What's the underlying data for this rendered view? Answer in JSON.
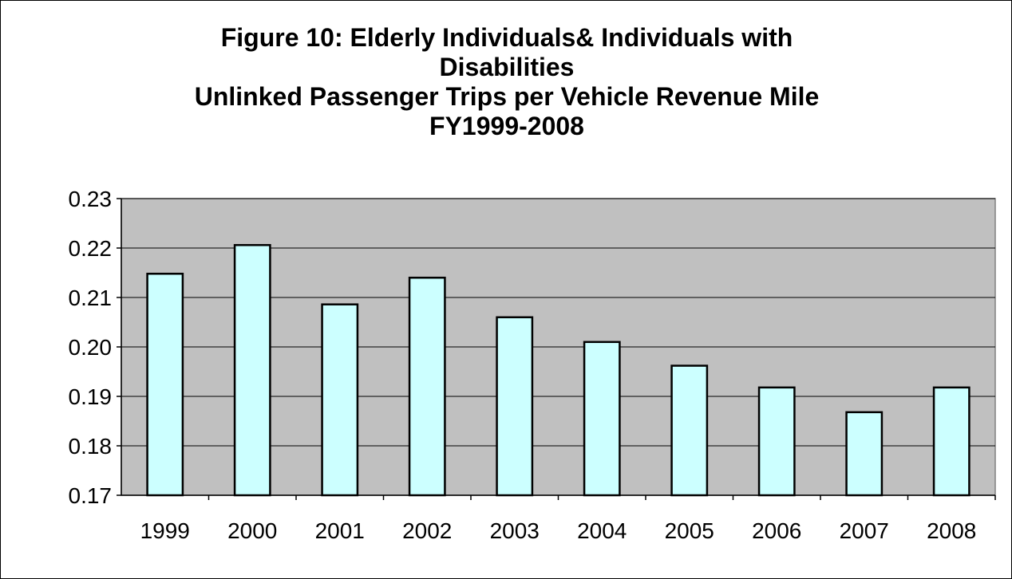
{
  "chart_data": {
    "type": "bar",
    "title_lines": [
      "Figure 10:  Elderly Individuals& Individuals with",
      "Disabilities",
      "Unlinked Passenger Trips per Vehicle Revenue Mile",
      "FY1999-2008"
    ],
    "categories": [
      "1999",
      "2000",
      "2001",
      "2002",
      "2003",
      "2004",
      "2005",
      "2006",
      "2007",
      "2008"
    ],
    "values": [
      0.2148,
      0.2206,
      0.2086,
      0.214,
      0.206,
      0.201,
      0.1962,
      0.1918,
      0.1868,
      0.1918
    ],
    "ylim": [
      0.17,
      0.23
    ],
    "yticks": [
      "0.17",
      "0.18",
      "0.19",
      "0.20",
      "0.21",
      "0.22",
      "0.23"
    ],
    "grid": true,
    "legend": "none",
    "colors": {
      "plot_background": "#c0c0c0",
      "bar_fill": "#ccffff",
      "bar_stroke": "#000000",
      "gridline": "#000000",
      "axis": "#000000"
    }
  }
}
